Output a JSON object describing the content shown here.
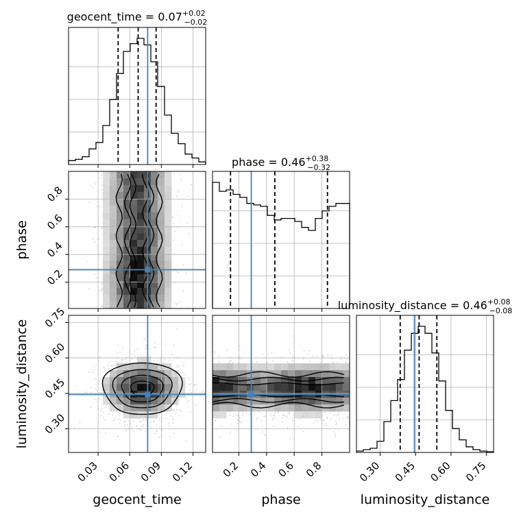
{
  "chart_data": {
    "type": "corner",
    "parameters": [
      "geocent_time",
      "phase",
      "luminosity_distance"
    ],
    "axis_labels": {
      "geocent_time": "geocent_time",
      "phase": "phase",
      "luminosity_distance": "luminosity_distance"
    },
    "titles": [
      {
        "param": "geocent_time",
        "text": "geocent_time = 0.07",
        "plus": "+0.02",
        "minus": "−0.02"
      },
      {
        "param": "phase",
        "text": "phase = 0.46",
        "plus": "+0.38",
        "minus": "−0.32"
      },
      {
        "param": "luminosity_distance",
        "text": "luminosity_distance = 0.46",
        "plus": "+0.08",
        "minus": "−0.08"
      }
    ],
    "ranges": {
      "geocent_time": [
        0.002,
        0.132
      ],
      "phase": [
        0.01,
        1.0
      ],
      "luminosity_distance": [
        0.2,
        0.78
      ]
    },
    "ticks": {
      "geocent_time": [
        {
          "v": 0.03,
          "label": "0.03"
        },
        {
          "v": 0.06,
          "label": "0.06"
        },
        {
          "v": 0.09,
          "label": "0.09"
        },
        {
          "v": 0.12,
          "label": "0.12"
        }
      ],
      "phase": [
        {
          "v": 0.2,
          "label": "0.2"
        },
        {
          "v": 0.4,
          "label": "0.4"
        },
        {
          "v": 0.6,
          "label": "0.6"
        },
        {
          "v": 0.8,
          "label": "0.8"
        }
      ],
      "luminosity_distance": [
        {
          "v": 0.3,
          "label": "0.30"
        },
        {
          "v": 0.45,
          "label": "0.45"
        },
        {
          "v": 0.6,
          "label": "0.60"
        },
        {
          "v": 0.75,
          "label": "0.75"
        }
      ]
    },
    "truths": {
      "geocent_time": 0.077,
      "phase": 0.29,
      "luminosity_distance": 0.445
    },
    "quantiles": {
      "geocent_time": [
        0.049,
        0.068,
        0.085
      ],
      "phase": [
        0.14,
        0.46,
        0.84
      ],
      "luminosity_distance": [
        0.385,
        0.465,
        0.54
      ]
    },
    "histograms": {
      "geocent_time": [
        0.03,
        0.04,
        0.06,
        0.12,
        0.17,
        0.3,
        0.5,
        0.7,
        0.87,
        0.93,
        0.97,
        0.92,
        0.79,
        0.6,
        0.38,
        0.24,
        0.16,
        0.08,
        0.05,
        0.02
      ],
      "phase": [
        0.84,
        0.78,
        0.79,
        0.76,
        0.74,
        0.7,
        0.69,
        0.68,
        0.62,
        0.59,
        0.6,
        0.6,
        0.58,
        0.54,
        0.52,
        0.6,
        0.65,
        0.68,
        0.7,
        0.7
      ],
      "luminosity_distance": [
        0.01,
        0.02,
        0.03,
        0.08,
        0.22,
        0.37,
        0.52,
        0.73,
        0.85,
        0.9,
        0.85,
        0.71,
        0.51,
        0.3,
        0.17,
        0.09,
        0.04,
        0.02,
        0.01,
        0.005
      ]
    },
    "grid": true,
    "colors": {
      "truth": "#4682b4",
      "hist": "#000000",
      "samples": "#9a9a9a",
      "density": "#000000"
    }
  }
}
